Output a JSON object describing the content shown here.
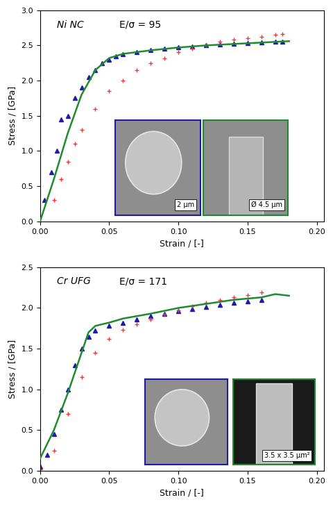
{
  "chart_data": [
    {
      "type": "line",
      "annotations": [
        "Ni NC",
        "E/σ = 95"
      ],
      "image_labels": [
        "2 µm",
        "Ø 4.5 µm"
      ],
      "x_label": "Strain / [-]",
      "y_label": "Stress / [GPa]",
      "xlim": [
        0,
        0.205
      ],
      "ylim": [
        0,
        3.0
      ],
      "xticks": [
        {
          "value": 0,
          "label": "0.00"
        },
        {
          "value": 0.05,
          "label": "0.05"
        },
        {
          "value": 0.1,
          "label": "0.10"
        },
        {
          "value": 0.15,
          "label": "0.15"
        },
        {
          "value": 0.2,
          "label": "0.20"
        }
      ],
      "yticks": [
        {
          "value": 0,
          "label": "0.0"
        },
        {
          "value": 0.5,
          "label": "0.5"
        },
        {
          "value": 1,
          "label": "1.0"
        },
        {
          "value": 1.5,
          "label": "1.5"
        },
        {
          "value": 2,
          "label": "2.0"
        },
        {
          "value": 2.5,
          "label": "2.5"
        },
        {
          "value": 3,
          "label": "3.0"
        }
      ],
      "grid": false,
      "series": [
        {
          "type": "scatter",
          "color": "#1c1ca8",
          "marker": "triangle",
          "x": [
            0.003,
            0.008,
            0.012,
            0.015,
            0.02,
            0.025,
            0.03,
            0.035,
            0.04,
            0.045,
            0.05,
            0.055,
            0.06,
            0.07,
            0.08,
            0.09,
            0.1,
            0.11,
            0.12,
            0.13,
            0.14,
            0.15,
            0.16,
            0.17,
            0.175
          ],
          "values": [
            0.3,
            0.7,
            1.0,
            1.45,
            1.5,
            1.75,
            1.9,
            2.05,
            2.15,
            2.25,
            2.3,
            2.35,
            2.38,
            2.4,
            2.43,
            2.45,
            2.47,
            2.48,
            2.5,
            2.51,
            2.52,
            2.53,
            2.54,
            2.55,
            2.55
          ]
        },
        {
          "type": "line",
          "color": "#1e8c2e",
          "line_style": "solid",
          "x": [
            0,
            0.01,
            0.02,
            0.03,
            0.04,
            0.05,
            0.06,
            0.08,
            0.1,
            0.12,
            0.14,
            0.16,
            0.18
          ],
          "values": [
            0,
            0.6,
            1.25,
            1.8,
            2.15,
            2.32,
            2.38,
            2.43,
            2.47,
            2.5,
            2.52,
            2.54,
            2.56
          ]
        },
        {
          "type": "scatter",
          "color": "#ff3030",
          "marker": "plus",
          "x": [
            0.01,
            0.015,
            0.02,
            0.025,
            0.03,
            0.04,
            0.05,
            0.06,
            0.07,
            0.08,
            0.09,
            0.1,
            0.11,
            0.12,
            0.13,
            0.14,
            0.15,
            0.16,
            0.17,
            0.175
          ],
          "values": [
            0.3,
            0.6,
            0.85,
            1.1,
            1.3,
            1.6,
            1.85,
            2.0,
            2.15,
            2.25,
            2.32,
            2.4,
            2.45,
            2.5,
            2.55,
            2.58,
            2.6,
            2.62,
            2.65,
            2.66
          ]
        }
      ]
    },
    {
      "type": "line",
      "annotations": [
        "Cr UFG",
        "E/σ = 171"
      ],
      "image_labels": [
        "3.5 x 3.5 µm²"
      ],
      "x_label": "Strain / [-]",
      "y_label": "Stress / [GPa]",
      "xlim": [
        0,
        0.205
      ],
      "ylim": [
        0,
        2.5
      ],
      "xticks": [
        {
          "value": 0,
          "label": "0.00"
        },
        {
          "value": 0.05,
          "label": "0.05"
        },
        {
          "value": 0.1,
          "label": "0.10"
        },
        {
          "value": 0.15,
          "label": "0.15"
        },
        {
          "value": 0.2,
          "label": "0.20"
        }
      ],
      "yticks": [
        {
          "value": 0,
          "label": "0.0"
        },
        {
          "value": 0.5,
          "label": "0.5"
        },
        {
          "value": 1,
          "label": "1.0"
        },
        {
          "value": 1.5,
          "label": "1.5"
        },
        {
          "value": 2,
          "label": "2.0"
        },
        {
          "value": 2.5,
          "label": "2.5"
        }
      ],
      "grid": false,
      "series": [
        {
          "type": "scatter",
          "color": "#1c1ca8",
          "marker": "triangle",
          "x": [
            0,
            0.005,
            0.01,
            0.015,
            0.02,
            0.025,
            0.03,
            0.035,
            0.04,
            0.05,
            0.06,
            0.07,
            0.08,
            0.09,
            0.1,
            0.11,
            0.12,
            0.13,
            0.14,
            0.15,
            0.16
          ],
          "values": [
            0.05,
            0.2,
            0.45,
            0.75,
            1.0,
            1.3,
            1.5,
            1.65,
            1.72,
            1.78,
            1.82,
            1.86,
            1.9,
            1.93,
            1.96,
            1.99,
            2.01,
            2.04,
            2.06,
            2.08,
            2.1
          ]
        },
        {
          "type": "line",
          "color": "#1e8c2e",
          "line_style": "solid",
          "x": [
            0,
            0.01,
            0.02,
            0.03,
            0.035,
            0.04,
            0.05,
            0.06,
            0.08,
            0.1,
            0.12,
            0.14,
            0.16,
            0.17,
            0.18
          ],
          "values": [
            0.15,
            0.5,
            0.95,
            1.45,
            1.7,
            1.78,
            1.82,
            1.87,
            1.93,
            2.0,
            2.05,
            2.1,
            2.13,
            2.17,
            2.15
          ]
        },
        {
          "type": "scatter",
          "color": "#ff3030",
          "marker": "plus",
          "x": [
            0,
            0.01,
            0.02,
            0.03,
            0.04,
            0.05,
            0.06,
            0.07,
            0.08,
            0.09,
            0.1,
            0.11,
            0.12,
            0.13,
            0.14,
            0.15,
            0.16
          ],
          "values": [
            0.02,
            0.25,
            0.7,
            1.15,
            1.45,
            1.62,
            1.73,
            1.8,
            1.86,
            1.92,
            1.97,
            2.02,
            2.06,
            2.1,
            2.13,
            2.16,
            2.19
          ]
        }
      ]
    }
  ]
}
